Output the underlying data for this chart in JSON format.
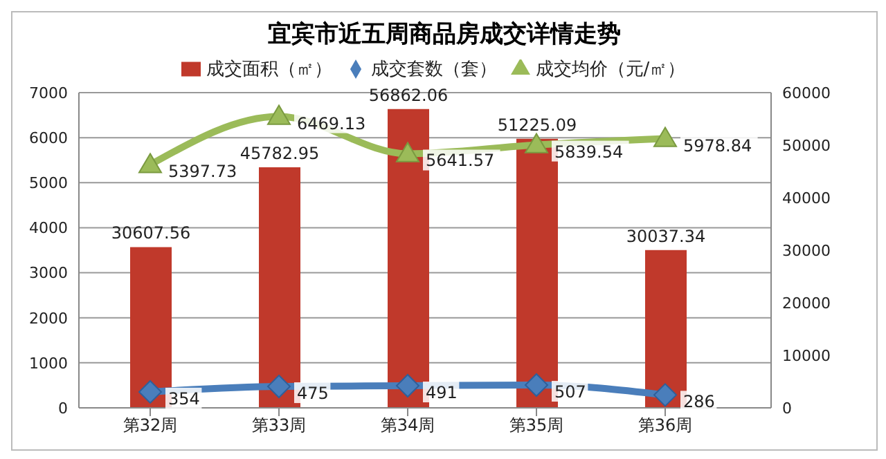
{
  "chart_data": {
    "type": "bar",
    "title": "宜宾市近五周商品房成交详情走势",
    "categories": [
      "第32周",
      "第33周",
      "第34周",
      "第35周",
      "第36周"
    ],
    "series": [
      {
        "name": "成交面积（㎡）",
        "axis": "y2",
        "color": "#c0392b",
        "values": [
          30607.56,
          45782.95,
          56862.06,
          51225.09,
          30037.34
        ]
      },
      {
        "name": "成交套数（套）",
        "type": "line",
        "color": "#4a7ebb",
        "marker": "diamond",
        "values": [
          354,
          475,
          491,
          507,
          286
        ]
      },
      {
        "name": "成交均价（元/㎡）",
        "type": "line",
        "color": "#9bbb59",
        "marker": "triangle",
        "values": [
          5397.73,
          6469.13,
          5641.57,
          5839.54,
          5978.84
        ]
      }
    ],
    "ylim": [
      0,
      7000
    ],
    "yticks": [
      0,
      1000,
      2000,
      3000,
      4000,
      5000,
      6000,
      7000
    ],
    "y2lim": [
      0,
      60000
    ],
    "y2ticks": [
      0,
      10000,
      20000,
      30000,
      40000,
      50000,
      60000
    ],
    "grid": "y",
    "legend": "top",
    "data_labels": true,
    "line_style": "solid"
  }
}
